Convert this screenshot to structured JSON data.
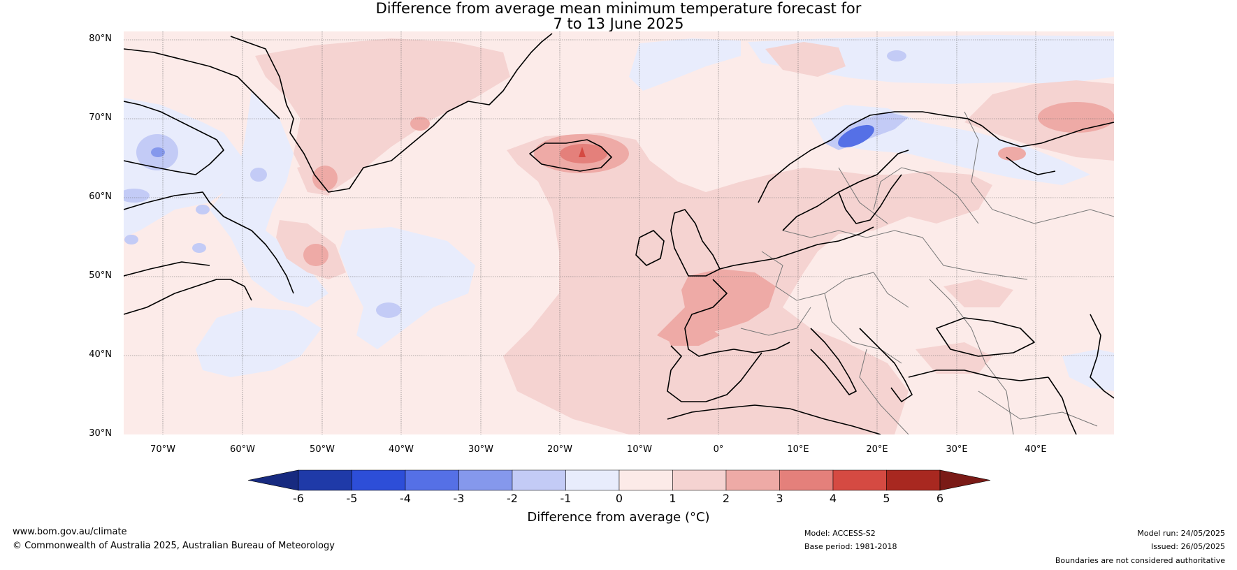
{
  "title": {
    "line1": "Difference from average mean minimum temperature forecast for",
    "line2": "7 to 13 June 2025"
  },
  "map": {
    "lat_labels": [
      "80°N",
      "70°N",
      "60°N",
      "50°N",
      "40°N",
      "30°N"
    ],
    "lon_labels": [
      "70°W",
      "60°W",
      "50°W",
      "40°W",
      "30°W",
      "20°W",
      "10°W",
      "0°",
      "10°E",
      "20°E",
      "30°E",
      "40°E"
    ],
    "lat_range": [
      30,
      80
    ],
    "lon_range": [
      -75,
      50
    ],
    "gridlines": true,
    "coastline_color": "#000000",
    "border_color": "#777777"
  },
  "colorbar": {
    "ticks": [
      "-6",
      "-5",
      "-4",
      "-3",
      "-2",
      "-1",
      "0",
      "1",
      "2",
      "3",
      "4",
      "5",
      "6"
    ],
    "colors": [
      "#1f3aa8",
      "#2d4ed8",
      "#5570e6",
      "#8598ec",
      "#c3cbf6",
      "#e8ecfc",
      "#fceae8",
      "#f5d3d1",
      "#eeaaa6",
      "#e4807b",
      "#d54a42",
      "#a82820"
    ],
    "under_color": "#172a80",
    "over_color": "#7a1a16",
    "label": "Difference from average (°C)"
  },
  "footer": {
    "website": "www.bom.gov.au/climate",
    "copyright": "© Commonwealth of Australia 2025, Australian Bureau of Meteorology",
    "model": "Model: ACCESS-S2",
    "base_period": "Base period: 1981-2018",
    "model_run": "Model run: 24/05/2025",
    "issued": "Issued: 26/05/2025",
    "disclaimer": "Boundaries are not considered authoritative"
  }
}
